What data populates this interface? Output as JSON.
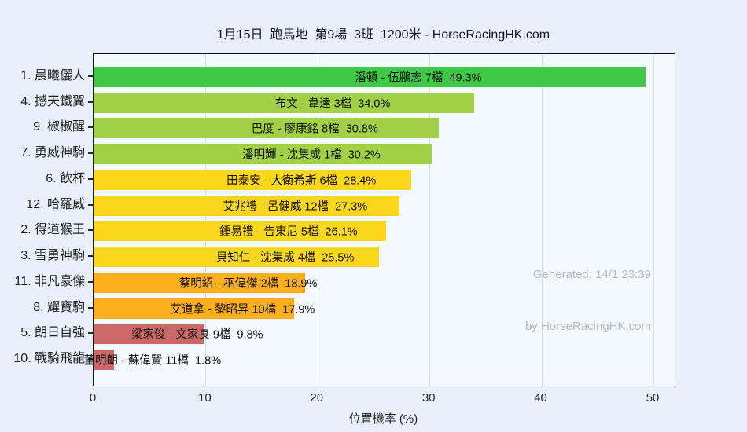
{
  "title": "1月15日  跑馬地  第9場  3班  1200米 - HorseRacingHK.com",
  "watermark": {
    "line1": "Generated: 14/1 23:39",
    "line2": "by HorseRacingHK.com"
  },
  "colors": {
    "page_background": "#e8f1fb",
    "plot_background": "#f4f9fe",
    "gridline": "#d7dde3",
    "axis": "#15151d",
    "watermark_text": "#b2bac3",
    "rank_1": "#3fc846",
    "rank_2_4": "#a2d147",
    "rank_5_8": "#fcd71e",
    "rank_9_10": "#fcae1f",
    "rank_11_12": "#cd6868"
  },
  "chart_data": {
    "type": "bar",
    "orientation": "horizontal",
    "title": "1月15日  跑馬地  第9場  3班  1200米 - HorseRacingHK.com",
    "xlabel": "位置機率 (%)",
    "ylabel": "",
    "xlim": [
      0,
      51.9
    ],
    "xticks": [
      0,
      10,
      20,
      30,
      40,
      50
    ],
    "grid": true,
    "legend": false,
    "bars": [
      {
        "name": "1. 晨曦儷人",
        "annotation": "潘頓 - 伍鵬志 7檔  49.3%",
        "jockey": "潘頓",
        "trainer": "伍鵬志",
        "gate": "7檔",
        "value": 49.3,
        "value_label": "49.3%",
        "color": "#3fc846"
      },
      {
        "name": "4. 撼天鐵翼",
        "annotation": "布文 - 韋達 3檔  34.0%",
        "jockey": "布文",
        "trainer": "韋達",
        "gate": "3檔",
        "value": 34.0,
        "value_label": "34.0%",
        "color": "#a2d147"
      },
      {
        "name": "9. 椒椒醒",
        "annotation": "巴度 - 廖康銘 8檔  30.8%",
        "jockey": "巴度",
        "trainer": "廖康銘",
        "gate": "8檔",
        "value": 30.8,
        "value_label": "30.8%",
        "color": "#a2d147"
      },
      {
        "name": "7. 勇威神駒",
        "annotation": "潘明輝 - 沈集成 1檔  30.2%",
        "jockey": "潘明輝",
        "trainer": "沈集成",
        "gate": "1檔",
        "value": 30.2,
        "value_label": "30.2%",
        "color": "#a2d147"
      },
      {
        "name": "6. 飲杯",
        "annotation": "田泰安 - 大衛希斯 6檔  28.4%",
        "jockey": "田泰安",
        "trainer": "大衛希斯",
        "gate": "6檔",
        "value": 28.4,
        "value_label": "28.4%",
        "color": "#fcd71e"
      },
      {
        "name": "12. 哈羅威",
        "annotation": "艾兆禮 - 呂健威 12檔  27.3%",
        "jockey": "艾兆禮",
        "trainer": "呂健威",
        "gate": "12檔",
        "value": 27.3,
        "value_label": "27.3%",
        "color": "#fcd71e"
      },
      {
        "name": "2. 得道猴王",
        "annotation": "鍾易禮 - 告東尼 5檔  26.1%",
        "jockey": "鍾易禮",
        "trainer": "告東尼",
        "gate": "5檔",
        "value": 26.1,
        "value_label": "26.1%",
        "color": "#fcd71e"
      },
      {
        "name": "3. 雪勇神駒",
        "annotation": "貝知仁 - 沈集成 4檔  25.5%",
        "jockey": "貝知仁",
        "trainer": "沈集成",
        "gate": "4檔",
        "value": 25.5,
        "value_label": "25.5%",
        "color": "#fcd71e"
      },
      {
        "name": "11. 非凡豪傑",
        "annotation": "蔡明紹 - 巫偉傑 2檔  18.9%",
        "jockey": "蔡明紹",
        "trainer": "巫偉傑",
        "gate": "2檔",
        "value": 18.9,
        "value_label": "18.9%",
        "color": "#fcae1f"
      },
      {
        "name": "8. 耀寶駒",
        "annotation": "艾道拿 - 黎昭昇 10檔  17.9%",
        "jockey": "艾道拿",
        "trainer": "黎昭昇",
        "gate": "10檔",
        "value": 17.9,
        "value_label": "17.9%",
        "color": "#fcae1f"
      },
      {
        "name": "5. 朗日自強",
        "annotation": "梁家俊 - 文家良 9檔  9.8%",
        "jockey": "梁家俊",
        "trainer": "文家良",
        "gate": "9檔",
        "value": 9.8,
        "value_label": "9.8%",
        "color": "#cd6868"
      },
      {
        "name": "10. 戰騎飛龍",
        "annotation": "董明朗 - 蘇偉賢 11檔  1.8%",
        "jockey": "董明朗",
        "trainer": "蘇偉賢",
        "gate": "11檔",
        "value": 1.8,
        "value_label": "1.8%",
        "color": "#cd6868"
      }
    ]
  }
}
